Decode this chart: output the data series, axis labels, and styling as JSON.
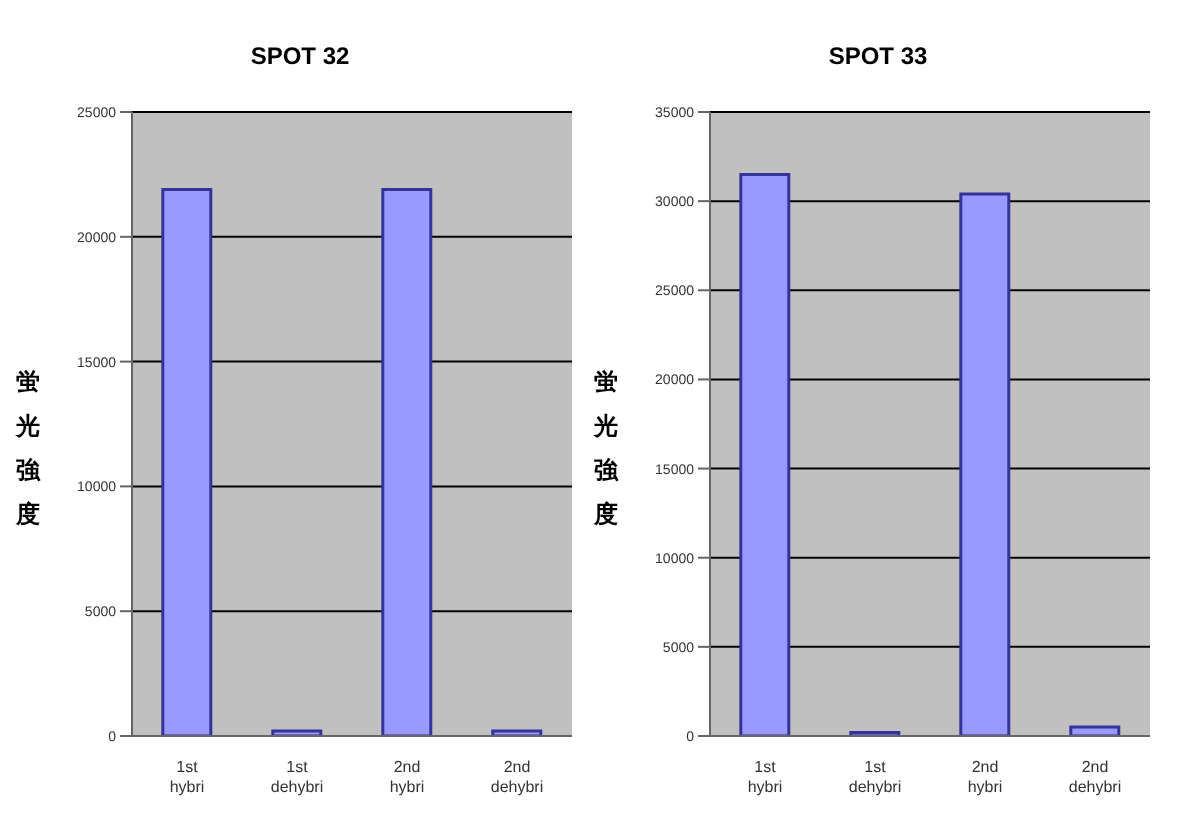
{
  "chart_data": [
    {
      "type": "bar",
      "title": "SPOT 32",
      "ylabel": "蛍光強度",
      "categories": [
        "1st hybri",
        "1st dehybri",
        "2nd hybri",
        "2nd dehybri"
      ],
      "values": [
        21900,
        200,
        21900,
        200
      ],
      "color": "#9999ff",
      "ylim": [
        0,
        25000
      ],
      "yticks": [
        0,
        5000,
        10000,
        15000,
        20000,
        25000
      ],
      "grid": "y"
    },
    {
      "type": "bar",
      "title": "SPOT 33",
      "ylabel": "蛍光強度",
      "categories": [
        "1st hybri",
        "1st dehybri",
        "2nd hybri",
        "2nd dehybri"
      ],
      "values": [
        31500,
        200,
        30400,
        500
      ],
      "color": "#9999ff",
      "ylim": [
        0,
        35000
      ],
      "yticks": [
        0,
        5000,
        10000,
        15000,
        20000,
        25000,
        30000,
        35000
      ],
      "grid": "y"
    }
  ]
}
